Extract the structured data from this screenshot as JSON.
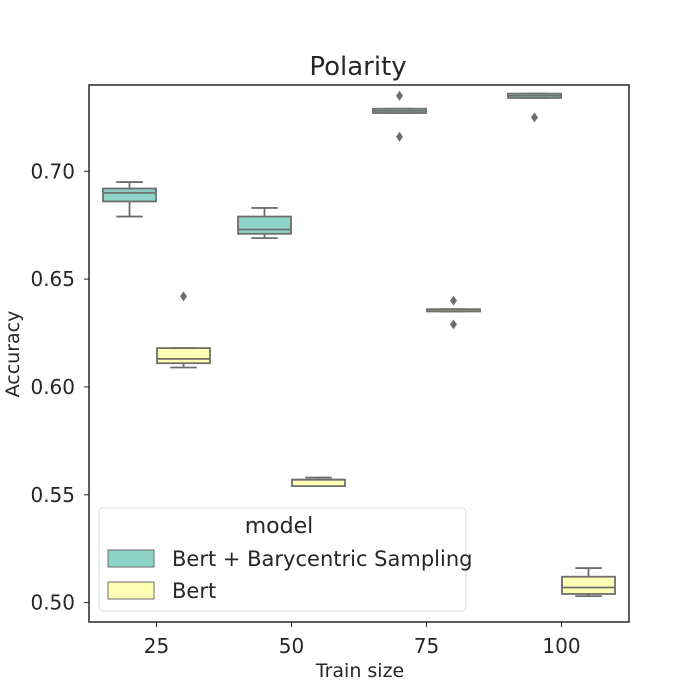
{
  "chart_data": {
    "type": "box",
    "title": "Polarity",
    "xlabel": "Train size",
    "ylabel": "Accuracy",
    "categories": [
      "25",
      "50",
      "75",
      "100"
    ],
    "ylim": [
      0.491,
      0.74
    ],
    "yticks": [
      0.5,
      0.55,
      0.6,
      0.65,
      0.7
    ],
    "ytick_labels": [
      "0.50",
      "0.55",
      "0.60",
      "0.65",
      "0.70"
    ],
    "legend": {
      "title": "model",
      "position": "lower-left"
    },
    "series": [
      {
        "name": "Bert + Barycentric Sampling",
        "color": "#8dd3c7",
        "boxes": [
          {
            "category": "25",
            "whisker_low": 0.679,
            "q1": 0.686,
            "median": 0.69,
            "q3": 0.692,
            "whisker_high": 0.695,
            "outliers": []
          },
          {
            "category": "50",
            "whisker_low": 0.669,
            "q1": 0.671,
            "median": 0.673,
            "q3": 0.679,
            "whisker_high": 0.683,
            "outliers": []
          },
          {
            "category": "75",
            "whisker_low": 0.727,
            "q1": 0.727,
            "median": 0.728,
            "q3": 0.729,
            "whisker_high": 0.729,
            "outliers": [
              0.735,
              0.716
            ]
          },
          {
            "category": "100",
            "whisker_low": 0.734,
            "q1": 0.734,
            "median": 0.735,
            "q3": 0.736,
            "whisker_high": 0.736,
            "outliers": [
              0.725
            ]
          }
        ]
      },
      {
        "name": "Bert",
        "color": "#ffffb3",
        "boxes": [
          {
            "category": "25",
            "whisker_low": 0.609,
            "q1": 0.611,
            "median": 0.613,
            "q3": 0.618,
            "whisker_high": 0.618,
            "outliers": [
              0.642
            ]
          },
          {
            "category": "50",
            "whisker_low": 0.554,
            "q1": 0.554,
            "median": 0.557,
            "q3": 0.557,
            "whisker_high": 0.558,
            "outliers": []
          },
          {
            "category": "75",
            "whisker_low": 0.635,
            "q1": 0.635,
            "median": 0.636,
            "q3": 0.636,
            "whisker_high": 0.636,
            "outliers": [
              0.64,
              0.629
            ]
          },
          {
            "category": "100",
            "whisker_low": 0.503,
            "q1": 0.504,
            "median": 0.507,
            "q3": 0.512,
            "whisker_high": 0.516,
            "outliers": []
          }
        ]
      }
    ]
  }
}
